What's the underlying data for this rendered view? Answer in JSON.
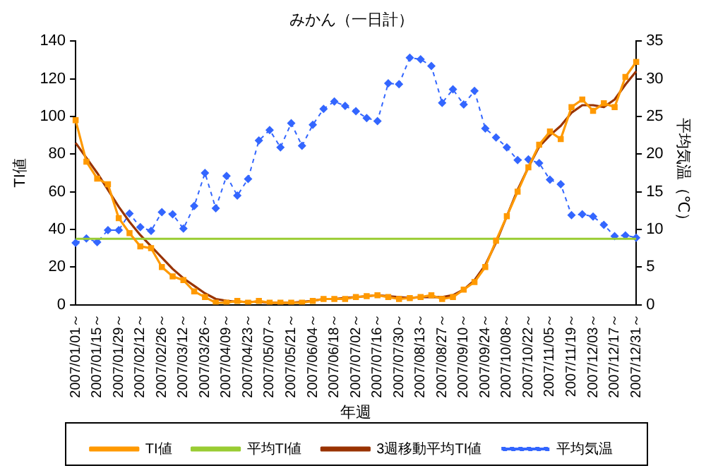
{
  "chart_data": {
    "type": "line",
    "title": "みかん（一日計）",
    "xlabel": "年週",
    "ylabel": "TI値",
    "y2label": "平均気温（℃）",
    "categories": [
      "2007/01/01～",
      null,
      "2007/01/15～",
      null,
      "2007/01/29～",
      null,
      "2007/02/12～",
      null,
      "2007/02/26～",
      null,
      "2007/03/12～",
      null,
      "2007/03/26～",
      null,
      "2007/04/09～",
      null,
      "2007/04/23～",
      null,
      "2007/05/07～",
      null,
      "2007/05/21～",
      null,
      "2007/06/04～",
      null,
      "2007/06/18～",
      null,
      "2007/07/02～",
      null,
      "2007/07/16～",
      null,
      "2007/07/30～",
      null,
      "2007/08/13～",
      null,
      "2007/08/27～",
      null,
      "2007/09/10～",
      null,
      "2007/09/24～",
      null,
      "2007/10/08～",
      null,
      "2007/10/22～",
      null,
      "2007/11/05～",
      null,
      "2007/11/19～",
      null,
      "2007/12/03～",
      null,
      "2007/12/17～",
      null,
      "2007/12/31～"
    ],
    "series": [
      {
        "name": "TI値",
        "color": "#ff9900",
        "marker": "square",
        "line_style": "solid",
        "values": [
          98,
          76,
          67,
          64,
          46,
          38,
          31,
          30,
          20,
          15,
          13,
          7,
          4,
          1,
          1,
          2,
          1,
          2,
          1,
          1,
          1,
          1,
          2,
          3,
          3,
          3,
          4,
          4.5,
          5,
          4,
          3,
          3.5,
          4,
          5,
          3,
          4,
          8,
          12,
          20,
          34,
          47,
          60,
          73,
          85,
          92,
          88,
          105,
          109,
          103,
          107,
          105,
          121,
          129
        ]
      },
      {
        "name": "平均TI値",
        "color": "#99cc33",
        "marker": "none",
        "line_style": "solid",
        "values": [
          35,
          35,
          35,
          35,
          35,
          35,
          35,
          35,
          35,
          35,
          35,
          35,
          35,
          35,
          35,
          35,
          35,
          35,
          35,
          35,
          35,
          35,
          35,
          35,
          35,
          35,
          35,
          35,
          35,
          35,
          35,
          35,
          35,
          35,
          35,
          35,
          35,
          35,
          35,
          35,
          35,
          35,
          35,
          35,
          35,
          35,
          35,
          35,
          35,
          35,
          35,
          35,
          35
        ]
      },
      {
        "name": "3週移動平均TI値",
        "color": "#993300",
        "marker": "none",
        "line_style": "solid",
        "values": [
          86,
          78,
          70,
          61,
          52,
          44,
          37,
          31,
          25,
          19,
          14,
          10,
          6,
          3,
          2,
          1.5,
          1.5,
          1.5,
          1,
          1,
          1,
          1.5,
          2,
          3,
          3,
          3.5,
          4,
          4.5,
          5,
          4.5,
          4,
          3.5,
          4,
          4,
          4,
          5,
          8,
          13,
          21,
          33,
          47,
          61,
          73,
          84,
          90,
          95,
          102,
          106,
          106,
          105,
          109,
          117,
          124
        ]
      },
      {
        "name": "平均気温",
        "color": "#3366ff",
        "marker": "diamond",
        "line_style": "dashed",
        "axis": "y2",
        "values": [
          8.2,
          8.8,
          8.3,
          9.9,
          9.9,
          12.1,
          10.3,
          9.8,
          12.3,
          12.0,
          10.1,
          13.1,
          17.5,
          12.8,
          17.1,
          14.5,
          16.7,
          21.8,
          23.2,
          20.9,
          24.1,
          21.1,
          23.9,
          26.0,
          27.0,
          26.4,
          25.7,
          24.8,
          24.4,
          29.4,
          29.3,
          32.8,
          32.6,
          31.7,
          26.8,
          28.6,
          26.6,
          28.4,
          23.4,
          22.2,
          20.9,
          19.2,
          19.3,
          18.8,
          16.6,
          16.0,
          11.9,
          12.0,
          11.7,
          10.6,
          9.1,
          9.2,
          8.9
        ]
      }
    ],
    "ylim": [
      0,
      140
    ],
    "yticks": [
      0,
      20,
      40,
      60,
      80,
      100,
      120,
      140
    ],
    "y2lim": [
      0,
      35
    ],
    "y2ticks": [
      0,
      5,
      10,
      15,
      20,
      25,
      30,
      35
    ],
    "grid": false,
    "legend": "bottom"
  }
}
